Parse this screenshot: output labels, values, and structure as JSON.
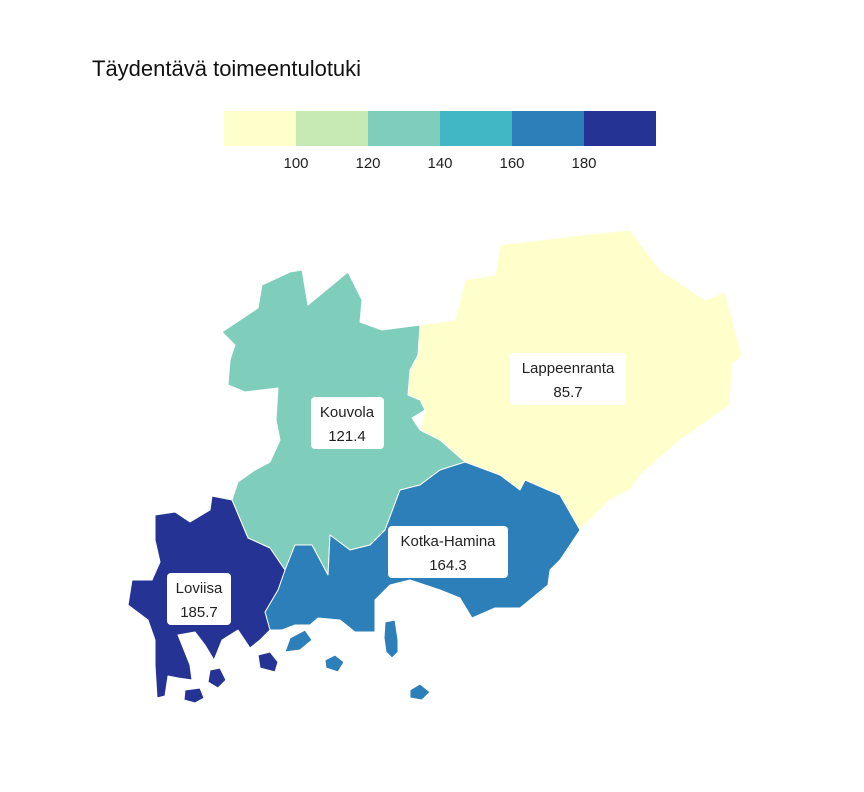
{
  "title": "Täydentävä toimeentulotuki",
  "legend": {
    "colors": [
      "#ffffcc",
      "#c7e9b4",
      "#7fcdbb",
      "#41b6c4",
      "#2c7fb8",
      "#253494"
    ],
    "ticks": [
      "100",
      "120",
      "140",
      "160",
      "180"
    ]
  },
  "regions": [
    {
      "name": "Lappeenranta",
      "value": "85.7",
      "color": "#ffffcc"
    },
    {
      "name": "Kouvola",
      "value": "121.4",
      "color": "#7fcdbb"
    },
    {
      "name": "Kotka-Hamina",
      "value": "164.3",
      "color": "#2c7fb8"
    },
    {
      "name": "Loviisa",
      "value": "185.7",
      "color": "#253494"
    }
  ]
}
